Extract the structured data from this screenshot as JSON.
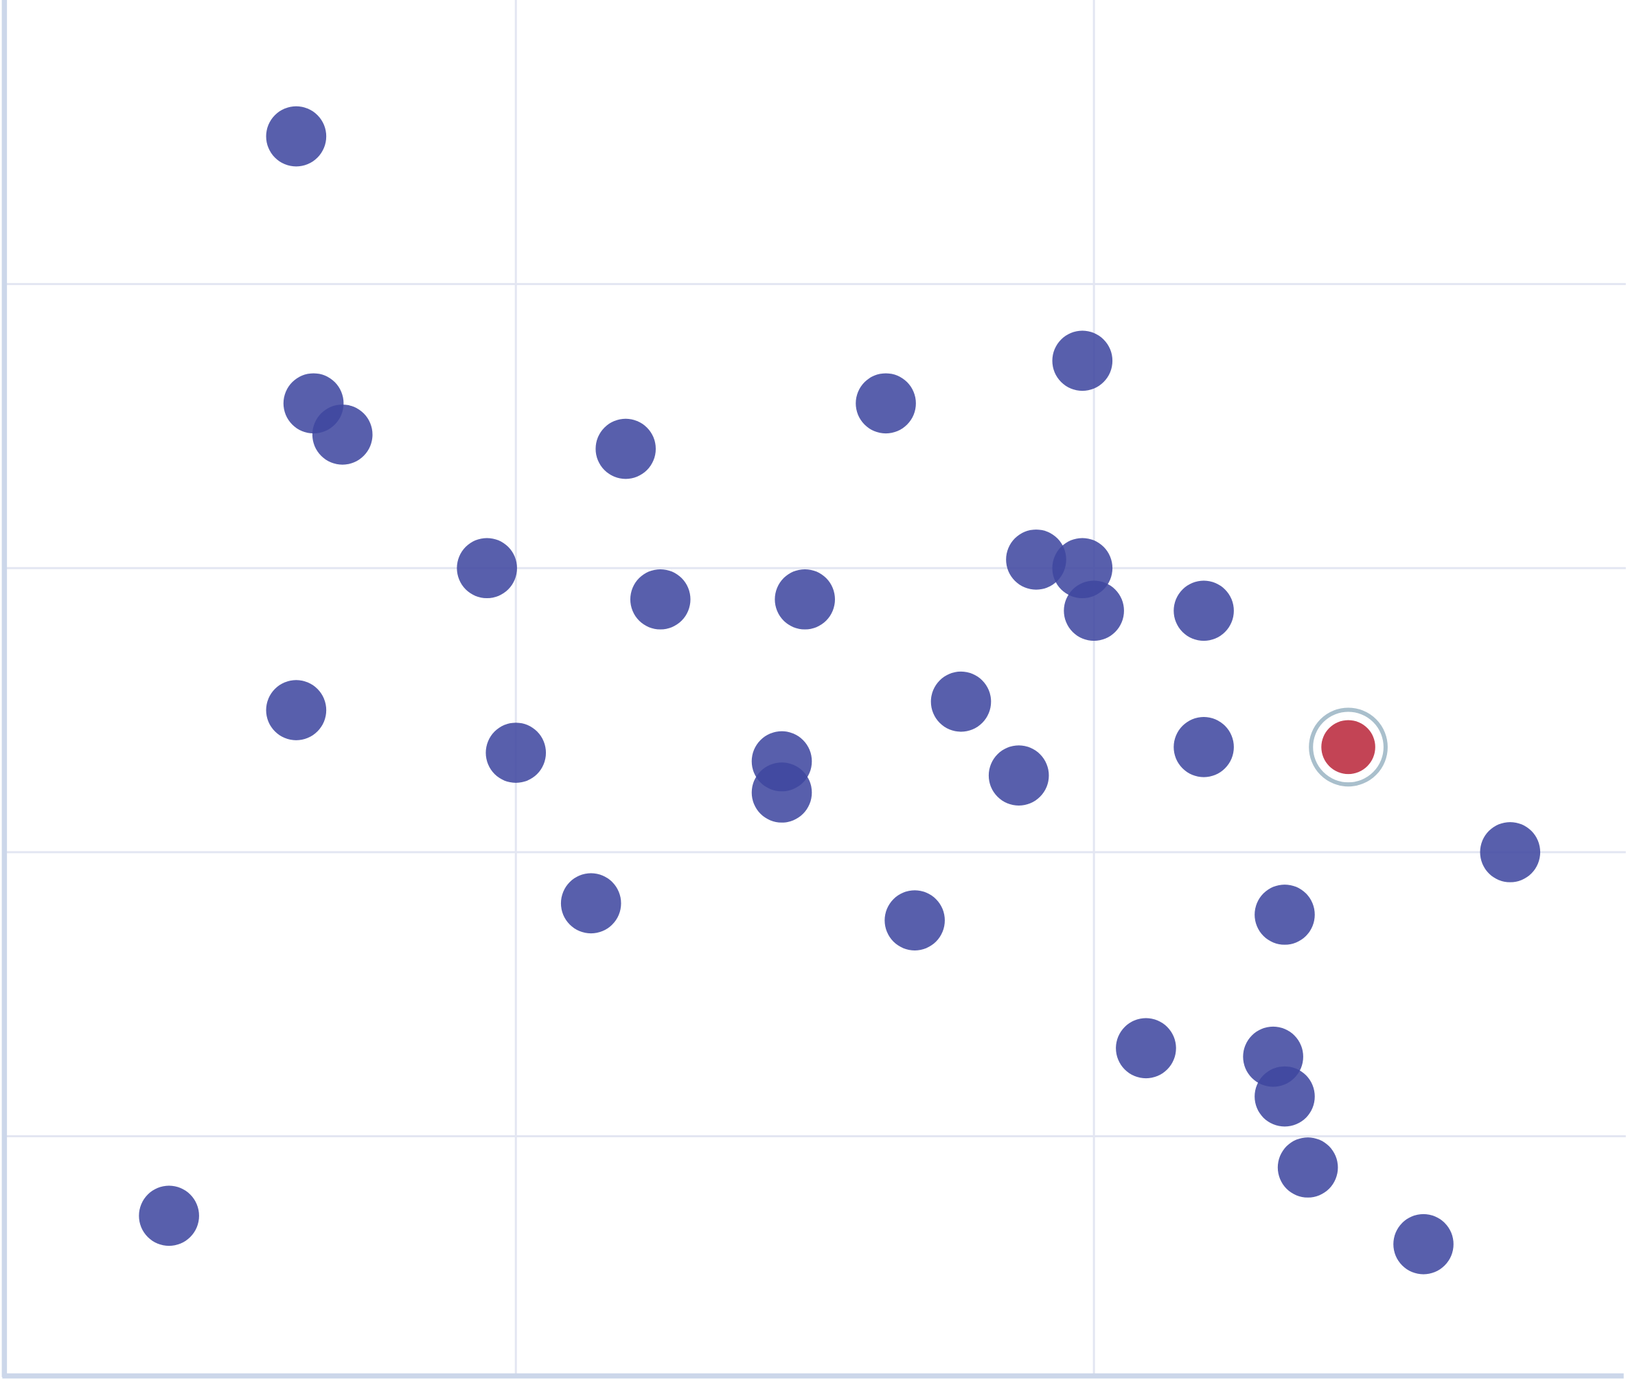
{
  "chart_data": {
    "type": "scatter",
    "title": "",
    "xlabel": "",
    "ylabel": "",
    "xlim": [
      0.117,
      2.92
    ],
    "ylim": [
      0.16,
      5.0
    ],
    "x_gridlines": [
      1,
      2
    ],
    "y_gridlines": [
      1,
      2,
      3,
      4
    ],
    "grid": true,
    "tick_labels_shown": false,
    "colors": {
      "point": "#3f47a0",
      "highlight": "#c03a4c",
      "highlight_ring": "#a9bfcc",
      "grid": "#e3e6f2",
      "axis": "#ccd7ea"
    },
    "points": [
      {
        "x": 0.62,
        "y": 4.52
      },
      {
        "x": 0.65,
        "y": 3.58
      },
      {
        "x": 0.7,
        "y": 3.47
      },
      {
        "x": 1.19,
        "y": 3.42
      },
      {
        "x": 1.64,
        "y": 3.58
      },
      {
        "x": 1.98,
        "y": 3.73
      },
      {
        "x": 0.95,
        "y": 3.0
      },
      {
        "x": 1.25,
        "y": 2.89
      },
      {
        "x": 1.5,
        "y": 2.89
      },
      {
        "x": 1.9,
        "y": 3.03
      },
      {
        "x": 1.98,
        "y": 3.0
      },
      {
        "x": 2.0,
        "y": 2.85
      },
      {
        "x": 2.19,
        "y": 2.85
      },
      {
        "x": 0.62,
        "y": 2.5
      },
      {
        "x": 1.0,
        "y": 2.35
      },
      {
        "x": 1.46,
        "y": 2.32
      },
      {
        "x": 1.46,
        "y": 2.21
      },
      {
        "x": 1.77,
        "y": 2.53
      },
      {
        "x": 1.87,
        "y": 2.27
      },
      {
        "x": 2.19,
        "y": 2.37
      },
      {
        "x": 2.44,
        "y": 2.37,
        "highlighted": true
      },
      {
        "x": 2.72,
        "y": 2.0
      },
      {
        "x": 1.13,
        "y": 1.82
      },
      {
        "x": 1.69,
        "y": 1.76
      },
      {
        "x": 2.33,
        "y": 1.78
      },
      {
        "x": 2.09,
        "y": 1.31
      },
      {
        "x": 2.31,
        "y": 1.28
      },
      {
        "x": 2.33,
        "y": 1.14
      },
      {
        "x": 2.37,
        "y": 0.89
      },
      {
        "x": 0.4,
        "y": 0.72
      },
      {
        "x": 2.57,
        "y": 0.62
      }
    ]
  }
}
